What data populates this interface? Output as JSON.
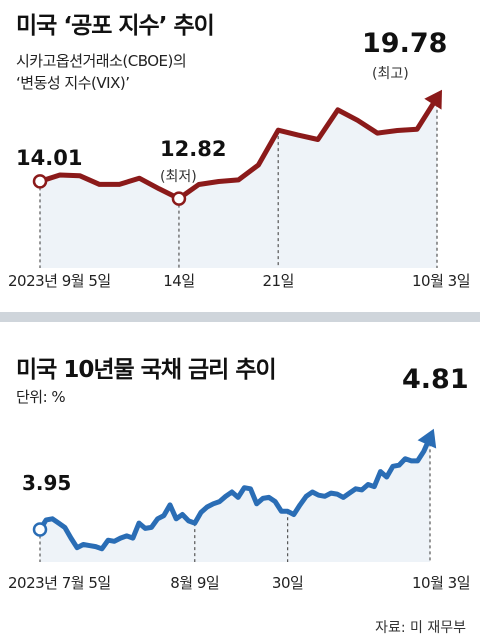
{
  "chart_data": [
    {
      "type": "line",
      "title": "미국 ‘공포 지수’ 추이",
      "subtitle_line1": "시카고옵션거래소(CBOE)의",
      "subtitle_line2": "‘변동성 지수(VIX)’",
      "color": "#8b1a1a",
      "fill_color": "#eef3f8",
      "x_labels": [
        "2023년 9월 5일",
        "14일",
        "21일",
        "10월 3일"
      ],
      "annotations": {
        "start_value": "14.01",
        "min_value": "12.82",
        "min_note": "(최저)",
        "end_value": "19.78",
        "end_note": "(최고)"
      },
      "ylim": [
        11,
        21
      ],
      "x": [
        "9/5",
        "9/6",
        "9/7",
        "9/8",
        "9/11",
        "9/12",
        "9/13",
        "9/14",
        "9/15",
        "9/18",
        "9/19",
        "9/20",
        "9/21",
        "9/22",
        "9/25",
        "9/26",
        "9/27",
        "9/28",
        "9/29",
        "10/2",
        "10/3"
      ],
      "values": [
        14.01,
        14.45,
        14.4,
        13.8,
        13.8,
        14.23,
        13.5,
        12.82,
        13.79,
        14.0,
        14.11,
        15.14,
        17.54,
        17.2,
        16.9,
        18.94,
        18.22,
        17.34,
        17.52,
        17.61,
        19.78
      ]
    },
    {
      "type": "line",
      "title": "미국 10년물 국채 금리 추이",
      "unit_label": "단위: %",
      "color": "#2a6db5",
      "fill_color": "#eef3f8",
      "x_labels": [
        "2023년 7월 5일",
        "8월 9일",
        "30일",
        "10월 3일"
      ],
      "annotations": {
        "start_value": "3.95",
        "end_value": "4.81"
      },
      "ylim": [
        3.6,
        5.0
      ],
      "x": [
        "7/5",
        "7/6",
        "7/7",
        "7/10",
        "7/11",
        "7/12",
        "7/13",
        "7/14",
        "7/17",
        "7/18",
        "7/19",
        "7/20",
        "7/21",
        "7/24",
        "7/25",
        "7/26",
        "7/27",
        "7/28",
        "7/31",
        "8/1",
        "8/2",
        "8/3",
        "8/4",
        "8/7",
        "8/8",
        "8/9",
        "8/10",
        "8/11",
        "8/14",
        "8/15",
        "8/16",
        "8/17",
        "8/18",
        "8/21",
        "8/22",
        "8/23",
        "8/24",
        "8/25",
        "8/28",
        "8/29",
        "8/30",
        "8/31",
        "9/1",
        "9/5",
        "9/6",
        "9/7",
        "9/8",
        "9/11",
        "9/12",
        "9/13",
        "9/14",
        "9/15",
        "9/18",
        "9/19",
        "9/20",
        "9/21",
        "9/22",
        "9/25",
        "9/26",
        "9/27",
        "9/28",
        "9/29",
        "10/2",
        "10/3"
      ],
      "values": [
        3.95,
        4.04,
        4.05,
        4.01,
        3.97,
        3.87,
        3.78,
        3.81,
        3.8,
        3.79,
        3.77,
        3.85,
        3.84,
        3.87,
        3.89,
        3.87,
        4.01,
        3.96,
        3.97,
        4.05,
        4.08,
        4.18,
        4.05,
        4.09,
        4.03,
        4.01,
        4.11,
        4.16,
        4.19,
        4.21,
        4.26,
        4.3,
        4.25,
        4.34,
        4.33,
        4.19,
        4.24,
        4.25,
        4.21,
        4.12,
        4.12,
        4.09,
        4.18,
        4.26,
        4.3,
        4.27,
        4.26,
        4.29,
        4.28,
        4.25,
        4.29,
        4.33,
        4.32,
        4.37,
        4.35,
        4.49,
        4.44,
        4.54,
        4.55,
        4.61,
        4.59,
        4.59,
        4.68,
        4.81
      ]
    }
  ],
  "source": "자료: 미 재무부"
}
